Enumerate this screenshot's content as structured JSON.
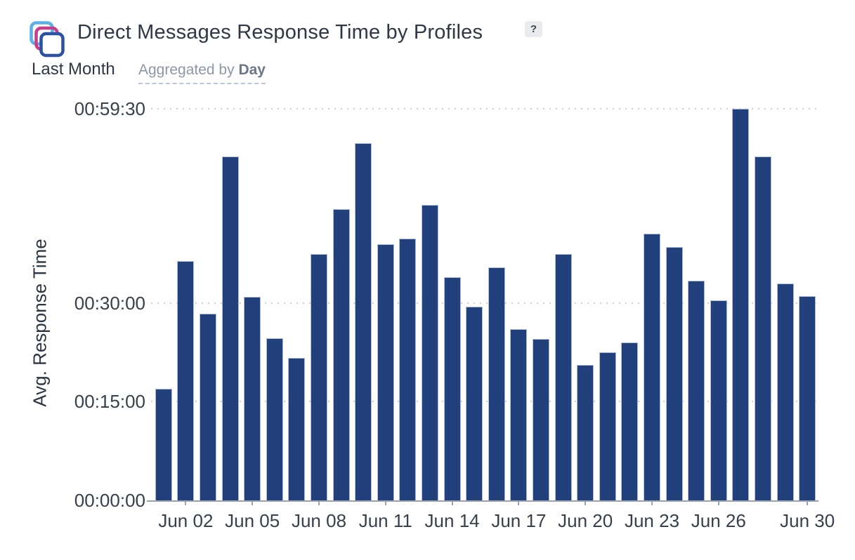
{
  "header": {
    "icon": {
      "name": "stacked-squares-icon",
      "colors": {
        "back": "#5ab0e8",
        "middle": "#c63d8b",
        "front": "#2d52a3"
      }
    },
    "title": "Direct Messages Response Time by Profiles",
    "help_badge": "?",
    "period": "Last Month",
    "aggregation": {
      "label": "Aggregated by",
      "value": "Day"
    }
  },
  "chart_data": {
    "type": "bar",
    "title": "Direct Messages Response Time by Profiles",
    "ylabel": "Avg. Response Time",
    "xlabel": "",
    "legend": "none",
    "grid": "horizontal-dotted",
    "bar_color": "#21407c",
    "bar_border_color": "#aebdd6",
    "grid_color": "#c6cfd4",
    "axis_color": "#98a1ac",
    "y_axis": {
      "unit": "hh:mm:ss",
      "max_minutes": 59.5,
      "tick_labels": [
        "00:59:30",
        "00:30:00",
        "00:15:00",
        "00:00:00"
      ],
      "tick_minutes": [
        59.5,
        30,
        15,
        0
      ]
    },
    "x_axis": {
      "tick_labels": [
        "Jun 02",
        "Jun 05",
        "Jun 08",
        "Jun 11",
        "Jun 14",
        "Jun 17",
        "Jun 20",
        "Jun 23",
        "Jun 26",
        "Jun 30"
      ],
      "tick_indices": [
        1,
        4,
        7,
        10,
        13,
        16,
        19,
        22,
        25,
        29
      ]
    },
    "categories": [
      "Jun 01",
      "Jun 02",
      "Jun 03",
      "Jun 04",
      "Jun 05",
      "Jun 06",
      "Jun 07",
      "Jun 08",
      "Jun 09",
      "Jun 10",
      "Jun 11",
      "Jun 12",
      "Jun 13",
      "Jun 14",
      "Jun 15",
      "Jun 16",
      "Jun 17",
      "Jun 18",
      "Jun 19",
      "Jun 20",
      "Jun 21",
      "Jun 22",
      "Jun 23",
      "Jun 24",
      "Jun 25",
      "Jun 26",
      "Jun 27",
      "Jun 28",
      "Jun 29",
      "Jun 30"
    ],
    "values_hms": [
      "00:17:00",
      "00:36:25",
      "00:28:25",
      "00:52:20",
      "00:30:55",
      "00:24:35",
      "00:21:35",
      "00:37:25",
      "00:44:20",
      "00:54:20",
      "00:38:55",
      "00:39:50",
      "00:44:55",
      "00:33:55",
      "00:29:25",
      "00:35:25",
      "00:26:00",
      "00:24:30",
      "00:37:25",
      "00:20:35",
      "00:22:30",
      "00:24:00",
      "00:40:30",
      "00:38:30",
      "00:33:25",
      "00:30:25",
      "00:59:30",
      "00:52:20",
      "00:33:00",
      "00:31:00"
    ],
    "values_minutes": [
      17.0,
      36.4,
      28.4,
      52.3,
      30.9,
      24.6,
      21.6,
      37.4,
      44.3,
      54.3,
      38.9,
      39.8,
      44.9,
      33.9,
      29.4,
      35.4,
      26.0,
      24.5,
      37.4,
      20.6,
      22.5,
      24.0,
      40.5,
      38.5,
      33.4,
      30.4,
      59.5,
      52.3,
      33.0,
      31.0
    ]
  }
}
